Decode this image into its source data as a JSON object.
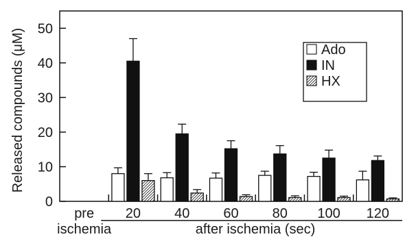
{
  "chart_data": {
    "type": "bar",
    "ylabel": "Released compounds (μM)",
    "categories": [
      "pre\nischemia",
      "20",
      "40",
      "60",
      "80",
      "100",
      "120"
    ],
    "group_label": "after ischemia (sec)",
    "ylim": [
      0,
      55
    ],
    "yticks": [
      0,
      10,
      20,
      30,
      40,
      50
    ],
    "legend_position": "top-right",
    "series": [
      {
        "name": "Ado",
        "fill": "#ffffff",
        "values": [
          0,
          8.0,
          6.8,
          6.7,
          7.5,
          7.2,
          6.2
        ],
        "errors": [
          0,
          1.7,
          1.5,
          1.5,
          1.2,
          1.2,
          2.5
        ]
      },
      {
        "name": "IN",
        "fill": "#111111",
        "values": [
          0,
          40.5,
          19.5,
          15.2,
          13.7,
          12.5,
          11.8
        ],
        "errors": [
          0,
          6.5,
          2.8,
          2.3,
          2.4,
          2.3,
          1.3
        ]
      },
      {
        "name": "HX",
        "fill": "hatch",
        "values": [
          0,
          6.0,
          2.4,
          1.4,
          1.1,
          1.1,
          0.7
        ],
        "errors": [
          0,
          2.0,
          1.0,
          0.5,
          0.5,
          0.4,
          0.3
        ]
      }
    ]
  }
}
